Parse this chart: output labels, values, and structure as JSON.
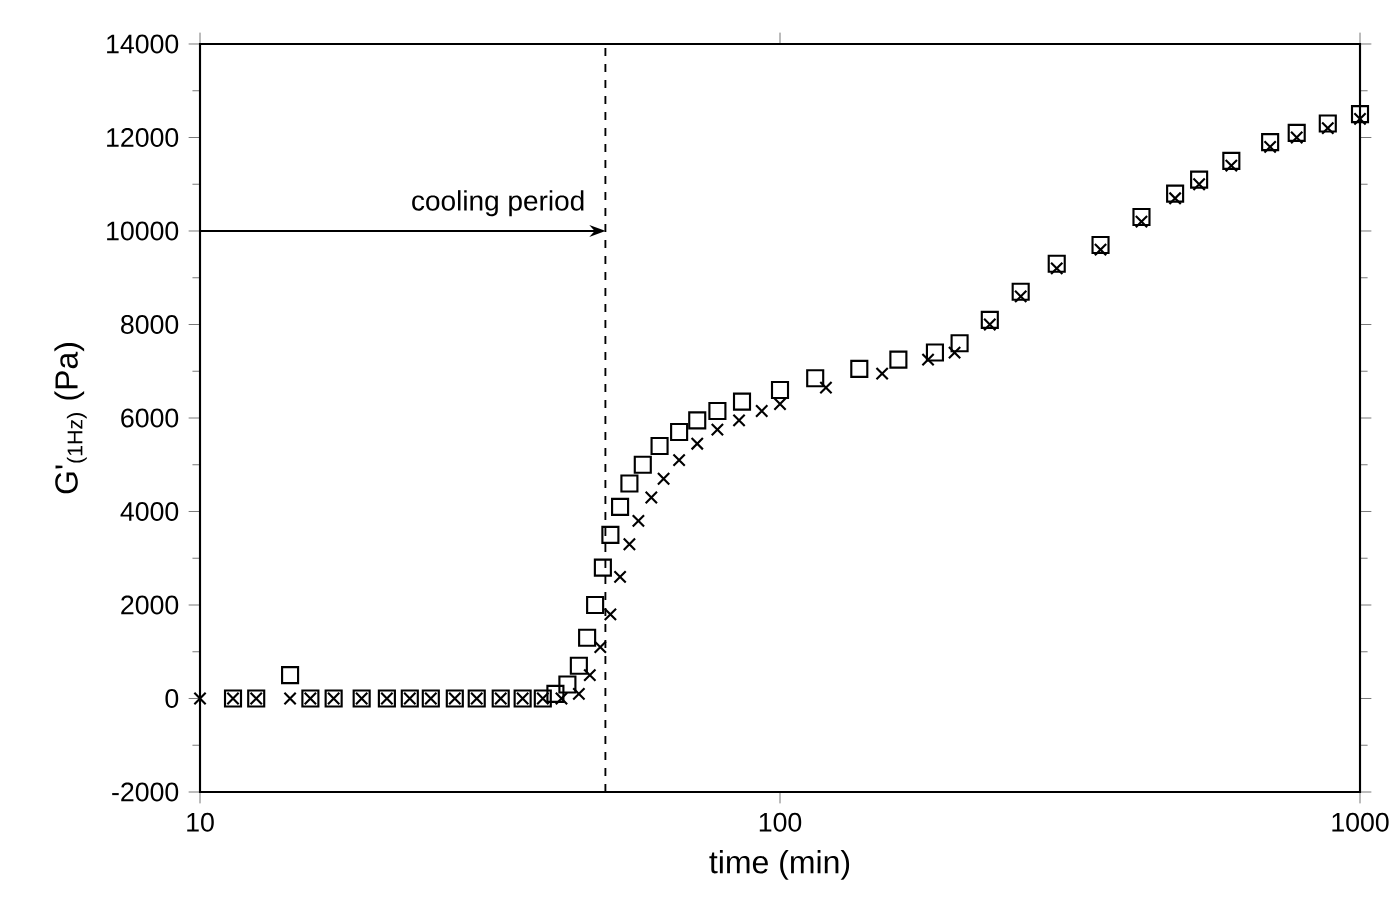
{
  "chart_data": {
    "type": "scatter",
    "xlabel": "time (min)",
    "ylabel": "G'$_{(1Hz)}$ (Pa)",
    "log": "x",
    "xlim": [
      10,
      1000
    ],
    "xticks": [
      10,
      100,
      1000
    ],
    "ylim": [
      -2000,
      14000
    ],
    "yticks": [
      -2000,
      0,
      2000,
      4000,
      6000,
      8000,
      10000,
      12000,
      14000
    ],
    "series": [
      {
        "color": "#000000",
        "marker": "square",
        "x": [
          11.4,
          12.5,
          14.3,
          15.5,
          17,
          19,
          21,
          23,
          25,
          27.5,
          30,
          33,
          36,
          39,
          41,
          43,
          45,
          46.5,
          48,
          49.5,
          51,
          53,
          55,
          58,
          62,
          67,
          72,
          78,
          86,
          100,
          115,
          137,
          160,
          185,
          204,
          230,
          260,
          300,
          357,
          420,
          480,
          528,
          600,
          700,
          778,
          880,
          1000
        ],
        "values": [
          0,
          0,
          500,
          0,
          0,
          0,
          0,
          0,
          0,
          0,
          0,
          0,
          0,
          0,
          100,
          300,
          700,
          1300,
          2000,
          2800,
          3500,
          4100,
          4600,
          5000,
          5400,
          5700,
          5950,
          6150,
          6350,
          6600,
          6850,
          7050,
          7250,
          7400,
          7600,
          8100,
          8700,
          9300,
          9700,
          10300,
          10800,
          11100,
          11500,
          11900,
          12100,
          12300,
          12500
        ]
      },
      {
        "color": "#000000",
        "marker": "cross",
        "x": [
          10,
          11.4,
          12.5,
          14.3,
          15.5,
          17,
          19,
          21,
          23,
          25,
          27.5,
          30,
          33,
          36,
          39,
          42,
          45,
          47,
          49,
          51,
          53,
          55,
          57,
          60,
          63,
          67,
          72,
          78,
          85,
          93,
          100,
          120,
          150,
          180,
          200,
          230,
          260,
          300,
          357,
          420,
          480,
          528,
          600,
          700,
          778,
          880,
          1000
        ],
        "values": [
          0,
          0,
          0,
          0,
          0,
          0,
          0,
          0,
          0,
          0,
          0,
          0,
          0,
          0,
          0,
          0,
          100,
          500,
          1100,
          1800,
          2600,
          3300,
          3800,
          4300,
          4700,
          5100,
          5450,
          5750,
          5950,
          6150,
          6300,
          6650,
          6950,
          7250,
          7400,
          8000,
          8600,
          9200,
          9600,
          10200,
          10700,
          11000,
          11400,
          11800,
          12000,
          12200,
          12400
        ]
      }
    ],
    "ref_lines": [
      {
        "axis": "x",
        "value": 50,
        "line_style": "dashed"
      }
    ],
    "annotations": [
      {
        "text": "cooling period",
        "x": 50,
        "y": 10000
      }
    ]
  }
}
